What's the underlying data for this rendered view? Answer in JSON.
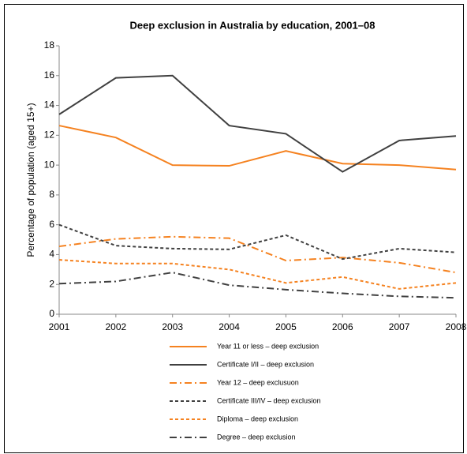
{
  "chart_data": {
    "type": "line",
    "title": "Deep exclusion in Australia by education, 2001–08",
    "y_label": "Percentage of population (aged 15+)",
    "x": [
      2001,
      2002,
      2003,
      2004,
      2005,
      2006,
      2007,
      2008
    ],
    "xlim": [
      2001,
      2008
    ],
    "xticks": [
      2001,
      2002,
      2003,
      2004,
      2005,
      2006,
      2007,
      2008
    ],
    "ylim": [
      0,
      18
    ],
    "yticks": [
      0,
      2,
      4,
      6,
      8,
      10,
      12,
      14,
      16,
      18
    ],
    "grid": false,
    "legend": "bottom",
    "series": [
      {
        "name": "Year 11 or less – deep exclusion",
        "color": "#f58220",
        "dash": "solid",
        "values": [
          12.65,
          11.85,
          10.0,
          9.95,
          10.95,
          10.1,
          10.0,
          9.7
        ]
      },
      {
        "name": "Certificate I/II – deep exclusion",
        "color": "#404040",
        "dash": "solid",
        "values": [
          13.4,
          15.85,
          16.0,
          12.65,
          12.1,
          9.55,
          11.65,
          11.95
        ]
      },
      {
        "name": "Year 12 – deep exclusuon",
        "color": "#f58220",
        "dash": "dashdot",
        "values": [
          4.55,
          5.05,
          5.2,
          5.1,
          3.6,
          3.8,
          3.45,
          2.8
        ]
      },
      {
        "name": "Certificate III/IV – deep exclusion",
        "color": "#404040",
        "dash": "dashed",
        "values": [
          6.0,
          4.6,
          4.4,
          4.35,
          5.3,
          3.7,
          4.4,
          4.15
        ]
      },
      {
        "name": "Diploma – deep exclusion",
        "color": "#f58220",
        "dash": "dashed",
        "values": [
          3.65,
          3.4,
          3.4,
          3.0,
          2.1,
          2.5,
          1.7,
          2.1
        ]
      },
      {
        "name": "Degree – deep exclusion",
        "color": "#404040",
        "dash": "dashdot",
        "values": [
          2.05,
          2.2,
          2.8,
          1.95,
          1.65,
          1.4,
          1.2,
          1.1
        ]
      }
    ]
  }
}
